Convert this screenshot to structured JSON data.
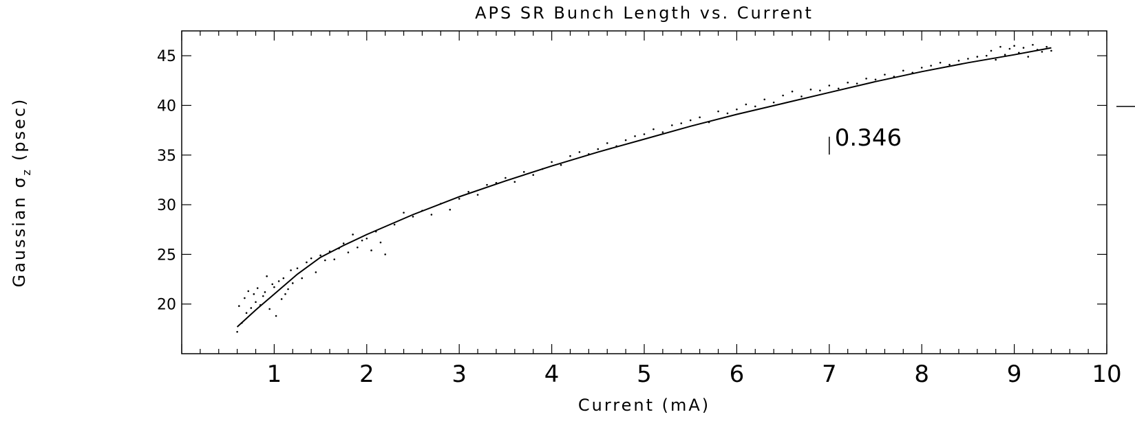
{
  "chart_data": {
    "type": "scatter",
    "title": "APS SR Bunch Length vs. Current",
    "xlabel": "Current (mA)",
    "ylabel": "Gaussian σz (psec)",
    "ylabel_main": "Gaussian σ",
    "ylabel_sub": "z",
    "ylabel_unit": "(psec)",
    "xlim": [
      0,
      10
    ],
    "ylim": [
      15,
      47.5
    ],
    "x_ticks": [
      "1",
      "2",
      "3",
      "4",
      "5",
      "6",
      "7",
      "8",
      "9",
      "10"
    ],
    "y_ticks": [
      "20",
      "25",
      "30",
      "35",
      "40",
      "45"
    ],
    "grid": false,
    "legend": "none",
    "annotation": {
      "text": "0.346",
      "x": 7.0,
      "y": 36.5
    },
    "series": [
      {
        "type": "line",
        "x": [
          0.6,
          0.8,
          1.0,
          1.25,
          1.5,
          1.75,
          2.0,
          2.5,
          3.0,
          3.5,
          4.0,
          4.5,
          5.0,
          5.5,
          6.0,
          6.5,
          7.0,
          7.5,
          8.0,
          8.5,
          9.0,
          9.4
        ],
        "values": [
          17.7,
          19.4,
          21.0,
          23.0,
          24.7,
          25.9,
          27.0,
          29.0,
          30.8,
          32.4,
          33.9,
          35.3,
          36.6,
          37.9,
          39.1,
          40.2,
          41.3,
          42.4,
          43.4,
          44.3,
          45.1,
          45.8
        ]
      },
      {
        "type": "scatter",
        "x": [
          0.6,
          0.62,
          0.65,
          0.68,
          0.7,
          0.72,
          0.75,
          0.78,
          0.8,
          0.82,
          0.85,
          0.88,
          0.9,
          0.92,
          0.95,
          0.98,
          1.0,
          1.02,
          1.05,
          1.08,
          1.1,
          1.12,
          1.15,
          1.18,
          1.2,
          1.25,
          1.3,
          1.35,
          1.4,
          1.45,
          1.5,
          1.55,
          1.6,
          1.65,
          1.7,
          1.75,
          1.8,
          1.85,
          1.9,
          1.95,
          2.0,
          2.05,
          2.1,
          2.15,
          2.2,
          2.3,
          2.4,
          2.5,
          2.6,
          2.7,
          2.8,
          2.9,
          3.0,
          3.1,
          3.2,
          3.3,
          3.4,
          3.5,
          3.6,
          3.7,
          3.8,
          3.9,
          4.0,
          4.1,
          4.2,
          4.3,
          4.4,
          4.5,
          4.6,
          4.7,
          4.8,
          4.9,
          5.0,
          5.1,
          5.2,
          5.3,
          5.4,
          5.5,
          5.6,
          5.7,
          5.8,
          5.9,
          6.0,
          6.1,
          6.2,
          6.3,
          6.4,
          6.5,
          6.6,
          6.7,
          6.8,
          6.9,
          7.0,
          7.1,
          7.2,
          7.3,
          7.4,
          7.5,
          7.6,
          7.7,
          7.8,
          7.9,
          8.0,
          8.1,
          8.2,
          8.3,
          8.4,
          8.5,
          8.6,
          8.7,
          8.75,
          8.8,
          8.85,
          8.9,
          8.95,
          9.0,
          9.05,
          9.1,
          9.15,
          9.2,
          9.25,
          9.3,
          9.35,
          9.4
        ],
        "values": [
          17.2,
          19.8,
          18.1,
          20.6,
          19.1,
          21.3,
          19.6,
          21.0,
          20.2,
          21.6,
          19.9,
          20.8,
          21.2,
          22.8,
          19.5,
          22.0,
          21.7,
          18.8,
          22.3,
          20.5,
          22.6,
          21.0,
          21.5,
          23.4,
          22.1,
          23.6,
          22.6,
          24.2,
          24.6,
          23.2,
          24.9,
          24.4,
          25.3,
          24.5,
          25.6,
          26.1,
          25.2,
          27.0,
          25.7,
          26.4,
          26.6,
          25.4,
          27.3,
          26.2,
          25.0,
          28.0,
          29.2,
          28.8,
          29.4,
          29.0,
          30.1,
          29.5,
          30.6,
          31.3,
          31.0,
          32.0,
          32.2,
          32.7,
          32.3,
          33.3,
          33.0,
          33.6,
          34.3,
          34.0,
          34.9,
          35.3,
          35.1,
          35.6,
          36.2,
          35.9,
          36.5,
          36.9,
          37.1,
          37.6,
          37.3,
          38.0,
          38.2,
          38.5,
          38.8,
          38.3,
          39.4,
          39.2,
          39.6,
          40.1,
          39.9,
          40.6,
          40.3,
          41.0,
          41.4,
          40.9,
          41.6,
          41.5,
          42.0,
          41.7,
          42.3,
          42.2,
          42.7,
          42.6,
          43.1,
          42.9,
          43.5,
          43.3,
          43.8,
          44.0,
          44.3,
          44.1,
          44.5,
          44.7,
          44.9,
          45.0,
          45.5,
          44.6,
          45.9,
          45.1,
          45.7,
          46.0,
          45.3,
          45.8,
          44.9,
          46.1,
          45.6,
          45.4,
          45.9,
          45.5
        ]
      }
    ]
  }
}
